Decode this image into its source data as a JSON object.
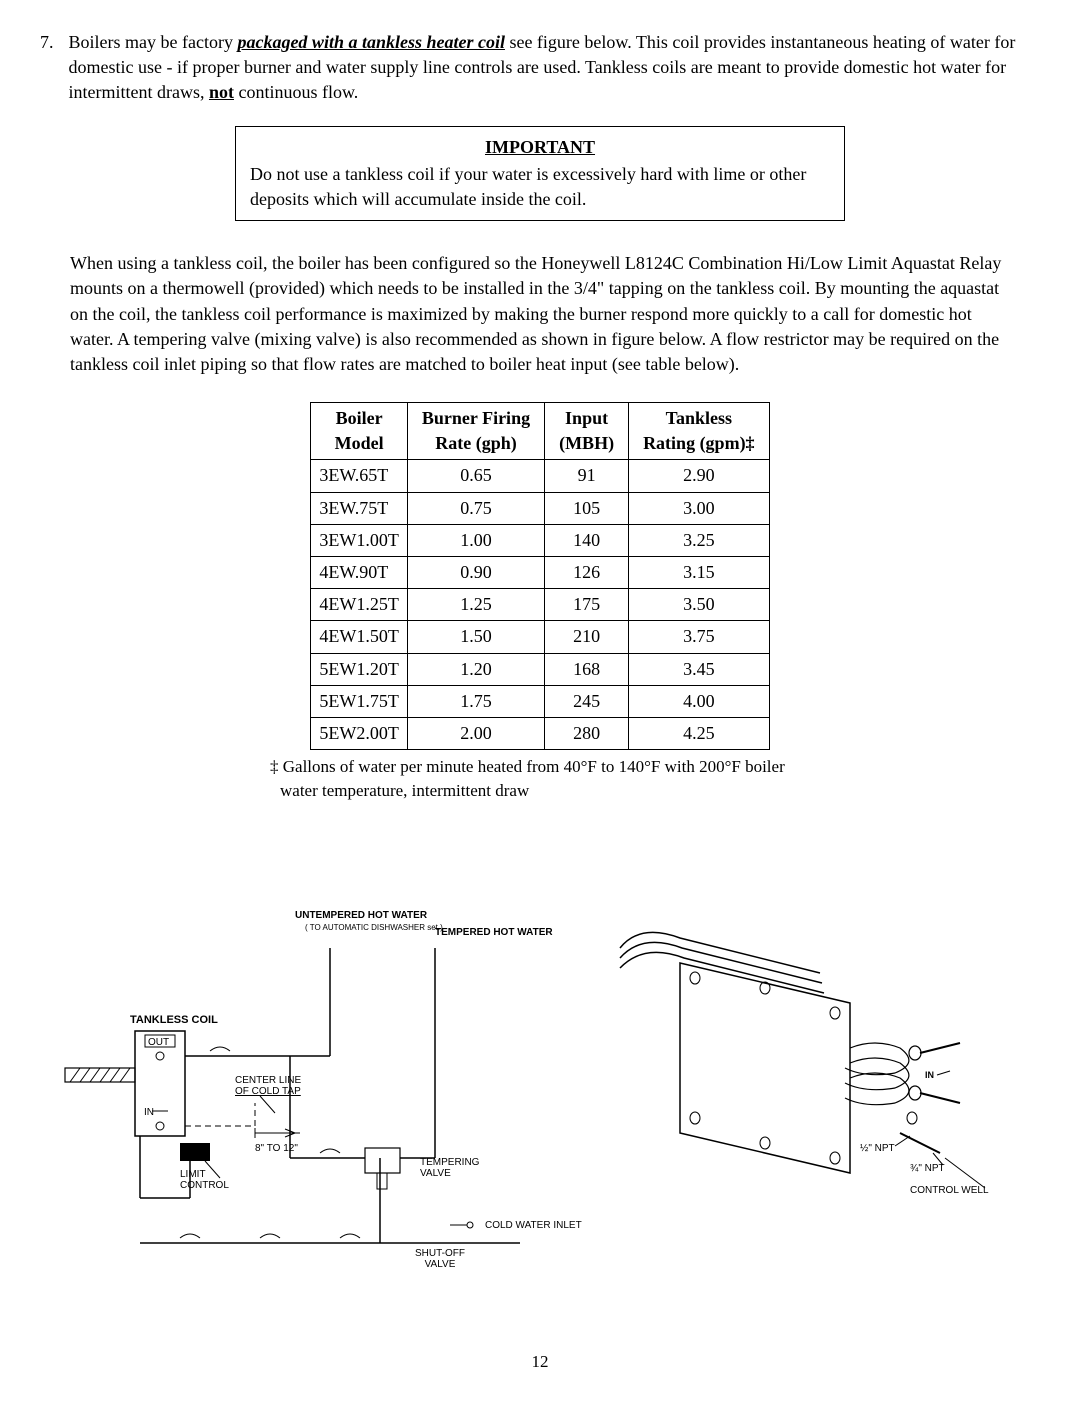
{
  "list": {
    "number": "7.",
    "text_parts": {
      "p1": "Boilers may be factory ",
      "emph": "packaged with a tankless heater coil",
      "p2": " see figure below. This coil provides instantaneous heating of water for domestic use - if proper burner and water supply line controls are used. Tankless coils are meant to provide domestic hot water for intermittent draws, ",
      "not": "not",
      "p3": " continuous flow."
    }
  },
  "important": {
    "title": "IMPORTANT",
    "text": "Do not use a tankless coil if your water is excessively hard with lime or other deposits which will accumulate inside the coil."
  },
  "body_paragraph": "When using a tankless coil, the boiler has been configured so the Honeywell L8124C Combination Hi/Low Limit Aquastat Relay mounts on a thermowell (provided) which needs to be installed in the 3/4\" tapping on the tankless coil. By mounting the aquastat on the coil, the tankless coil performance is maximized by making the burner respond more quickly to a call for domestic hot water. A tempering valve (mixing valve) is also recommended as shown in figure below. A flow restrictor may be required on the tankless coil inlet piping so that flow rates are matched to boiler heat input (see table below).",
  "table": {
    "headers": {
      "col1_a": "Boiler",
      "col1_b": "Model",
      "col2_a": "Burner Firing",
      "col2_b": "Rate (gph)",
      "col3_a": "Input",
      "col3_b": "(MBH)",
      "col4_a": "Tankless",
      "col4_b": "Rating (gpm)‡"
    },
    "rows": [
      {
        "model": "3EW.65T",
        "rate": "0.65",
        "input": "91",
        "rating": "2.90"
      },
      {
        "model": "3EW.75T",
        "rate": "0.75",
        "input": "105",
        "rating": "3.00"
      },
      {
        "model": "3EW1.00T",
        "rate": "1.00",
        "input": "140",
        "rating": "3.25"
      },
      {
        "model": "4EW.90T",
        "rate": "0.90",
        "input": "126",
        "rating": "3.15"
      },
      {
        "model": "4EW1.25T",
        "rate": "1.25",
        "input": "175",
        "rating": "3.50"
      },
      {
        "model": "4EW1.50T",
        "rate": "1.50",
        "input": "210",
        "rating": "3.75"
      },
      {
        "model": "5EW1.20T",
        "rate": "1.20",
        "input": "168",
        "rating": "3.45"
      },
      {
        "model": "5EW1.75T",
        "rate": "1.75",
        "input": "245",
        "rating": "4.00"
      },
      {
        "model": "5EW2.00T",
        "rate": "2.00",
        "input": "280",
        "rating": "4.25"
      }
    ]
  },
  "footnote": "‡ Gallons of water per minute heated from 40°F to 140°F with 200°F boiler water temperature, intermittent draw",
  "diagram": {
    "labels": {
      "untempered1": "UNTEMPERED HOT WATER",
      "untempered2": "( TO AUTOMATIC DISHWASHER set.)",
      "tempered": "TEMPERED HOT WATER",
      "tankless_coil": "TANKLESS COIL",
      "out": "OUT",
      "in": "IN",
      "centerline1": "CENTER LINE",
      "centerline2": "OF COLD TAP",
      "dim": "8\" TO 12\"",
      "limit1": "LIMIT",
      "limit2": "CONTROL",
      "tempering1": "TEMPERING",
      "tempering2": "VALVE",
      "cold_inlet": "COLD WATER INLET",
      "shutoff1": "SHUT-OFF",
      "shutoff2": "VALVE",
      "half_npt": "½\" NPT",
      "three_q_npt": "¾\" NPT",
      "control_well": "CONTROL WELL"
    }
  },
  "page_number": "12"
}
